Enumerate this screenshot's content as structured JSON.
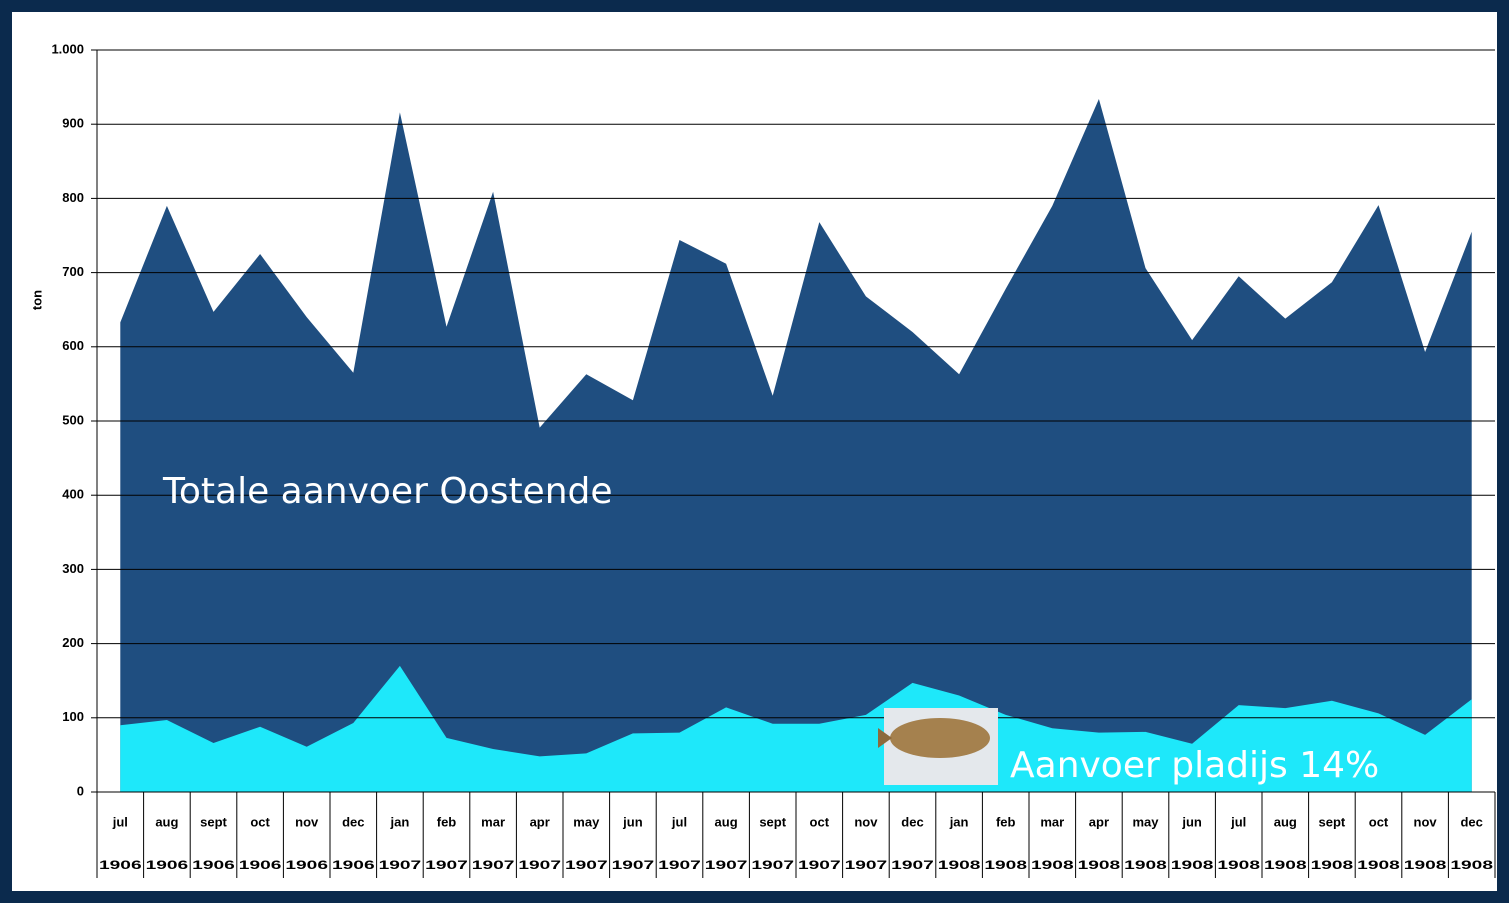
{
  "chart_data": {
    "type": "area",
    "y_label": "ton",
    "categories": [
      "jul",
      "aug",
      "sept",
      "oct",
      "nov",
      "dec",
      "jan",
      "feb",
      "mar",
      "apr",
      "may",
      "jun",
      "jul",
      "aug",
      "sept",
      "oct",
      "nov",
      "dec",
      "jan",
      "feb",
      "mar",
      "apr",
      "may",
      "jun",
      "jul",
      "aug",
      "sept",
      "oct",
      "nov",
      "dec"
    ],
    "category_years": [
      "1906",
      "1906",
      "1906",
      "1906",
      "1906",
      "1906",
      "1907",
      "1907",
      "1907",
      "1907",
      "1907",
      "1907",
      "1907",
      "1907",
      "1907",
      "1907",
      "1907",
      "1907",
      "1908",
      "1908",
      "1908",
      "1908",
      "1908",
      "1908",
      "1908",
      "1908",
      "1908",
      "1908",
      "1908",
      "1908"
    ],
    "series": [
      {
        "name": "Totale aanvoer Oostende",
        "color": "#1f4e80",
        "values": [
          633,
          790,
          647,
          725,
          640,
          565,
          916,
          627,
          809,
          491,
          563,
          528,
          744,
          712,
          534,
          768,
          668,
          620,
          563,
          678,
          790,
          934,
          706,
          609,
          695,
          638,
          687,
          791,
          593,
          755
        ]
      },
      {
        "name": "Aanvoer pladijs 14%",
        "color": "#1ee8fa",
        "values": [
          90,
          97,
          66,
          88,
          61,
          93,
          170,
          73,
          58,
          48,
          52,
          79,
          80,
          114,
          92,
          92,
          104,
          147,
          130,
          104,
          86,
          80,
          81,
          65,
          117,
          113,
          123,
          106,
          77,
          125
        ]
      }
    ],
    "ylim": [
      0,
      1000
    ],
    "yticks": [
      0,
      100,
      200,
      300,
      400,
      500,
      600,
      700,
      800,
      900,
      {
        "value": 1000,
        "label": "1.000"
      }
    ],
    "grid": true
  }
}
